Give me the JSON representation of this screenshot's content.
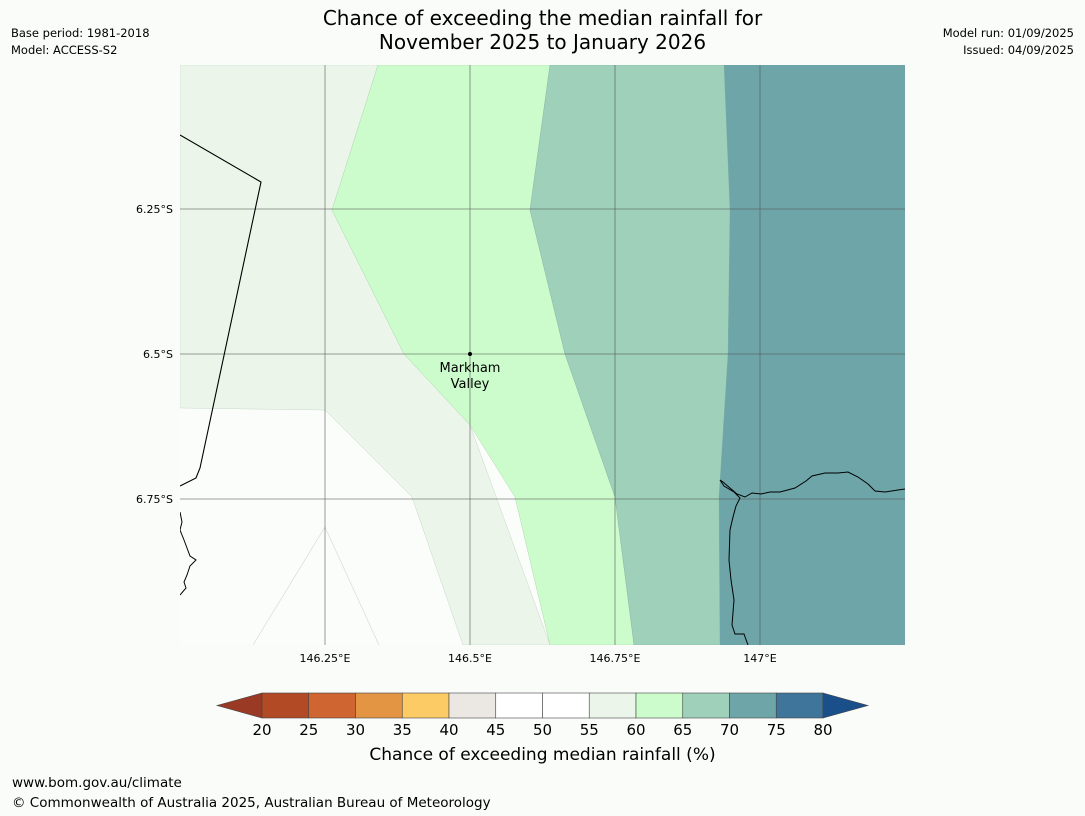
{
  "header": {
    "base_period": "Base period: 1981-2018",
    "model": "Model: ACCESS-S2",
    "model_run": "Model run: 01/09/2025",
    "issued": "Issued: 04/09/2025",
    "title_line1": "Chance of exceeding the median rainfall for",
    "title_line2": "November 2025 to January 2026"
  },
  "map": {
    "place_label_line1": "Markham",
    "place_label_line2": "Valley",
    "lat_labels": [
      "6.25°S",
      "6.5°S",
      "6.75°S"
    ],
    "lon_labels": [
      "146.25°E",
      "146.5°E",
      "146.75°E",
      "147°E"
    ]
  },
  "colorbar": {
    "ticks": [
      "20",
      "25",
      "30",
      "35",
      "40",
      "45",
      "50",
      "55",
      "60",
      "65",
      "70",
      "75",
      "80"
    ],
    "label": "Chance of exceeding median rainfall (%)",
    "low_color": "#9a3a24",
    "high_color": "#1b4f8a",
    "colors": [
      "#b24a26",
      "#cf6531",
      "#e49544",
      "#fdcb66",
      "#ebe8e4",
      "#ffffff",
      "#ffffff",
      "#ebf5ea",
      "#ccfccc",
      "#9ed0ba",
      "#6ea5a8",
      "#3f759a"
    ]
  },
  "footer": {
    "url": "www.bom.gov.au/climate",
    "copyright": "© Commonwealth of Australia 2025, Australian Bureau of Meteorology"
  }
}
